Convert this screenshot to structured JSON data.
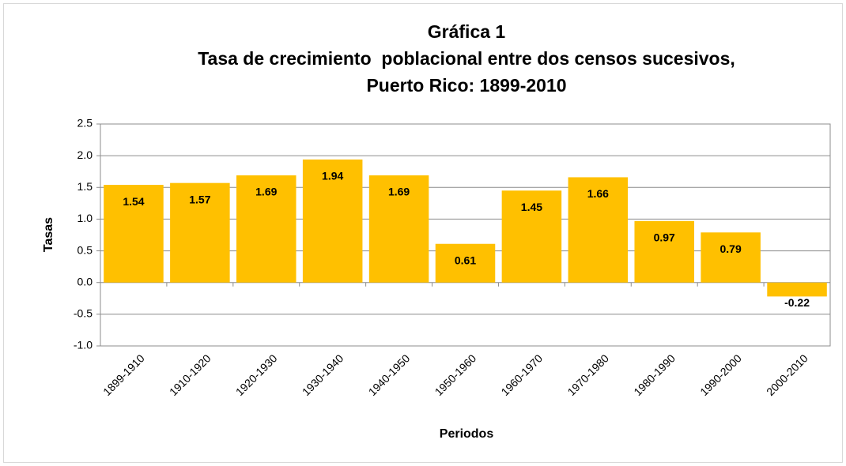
{
  "chart_data": {
    "type": "bar",
    "title": [
      "Gráfica 1",
      "Tasa de crecimiento  poblacional entre dos censos sucesivos,",
      "Puerto Rico: 1899-2010"
    ],
    "xlabel": "Periodos",
    "ylabel": "Tasas",
    "categories": [
      "1899-1910",
      "1910-1920",
      "1920-1930",
      "1930-1940",
      "1940-1950",
      "1950-1960",
      "1960-1970",
      "1970-1980",
      "1980-1990",
      "1990-2000",
      "2000-2010"
    ],
    "values": [
      1.54,
      1.57,
      1.69,
      1.94,
      1.69,
      0.61,
      1.45,
      1.66,
      0.97,
      0.79,
      -0.22
    ],
    "color": "#ffc000",
    "ylim": [
      -1.0,
      2.5
    ],
    "yticks": [
      {
        "value": -1.0,
        "label": "-1.0"
      },
      -0.5,
      {
        "value": 0.0,
        "label": "0.0"
      },
      0.5,
      {
        "value": 1.0,
        "label": "1.0"
      },
      1.5,
      {
        "value": 2.0,
        "label": "2.0"
      },
      2.5
    ],
    "grid": true
  }
}
